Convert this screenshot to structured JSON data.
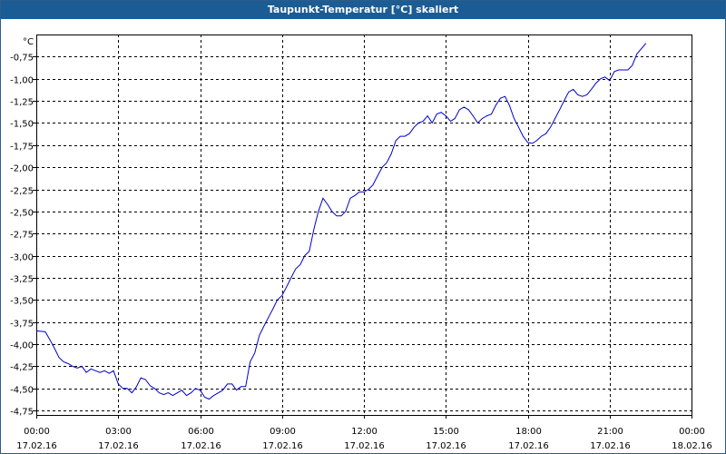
{
  "window": {
    "title": "Taupunkt-Temperatur [°C] skaliert"
  },
  "chart_data": {
    "type": "line",
    "title": "Taupunkt-Temperatur [°C] skaliert",
    "unit_label": "°C",
    "ylim": [
      -4.8,
      -0.5
    ],
    "xlim": [
      0,
      24
    ],
    "grid": true,
    "colors": {
      "line": "#0000cc",
      "grid": "#000000",
      "title_bar": "#1c5c94"
    },
    "y_ticks": [
      {
        "value": -0.75,
        "label": "-0,75"
      },
      {
        "value": -1.0,
        "label": "-1,00"
      },
      {
        "value": -1.25,
        "label": "-1,25"
      },
      {
        "value": -1.5,
        "label": "-1,50"
      },
      {
        "value": -1.75,
        "label": "-1,75"
      },
      {
        "value": -2.0,
        "label": "-2,00"
      },
      {
        "value": -2.25,
        "label": "-2,25"
      },
      {
        "value": -2.5,
        "label": "-2,50"
      },
      {
        "value": -2.75,
        "label": "-2,75"
      },
      {
        "value": -3.0,
        "label": "-3,00"
      },
      {
        "value": -3.25,
        "label": "-3,25"
      },
      {
        "value": -3.5,
        "label": "-3,50"
      },
      {
        "value": -3.75,
        "label": "-3,75"
      },
      {
        "value": -4.0,
        "label": "-4,00"
      },
      {
        "value": -4.25,
        "label": "-4,25"
      },
      {
        "value": -4.5,
        "label": "-4,50"
      },
      {
        "value": -4.75,
        "label": "-4,75"
      }
    ],
    "x_ticks": [
      {
        "value": 0,
        "time": "00:00",
        "date": "17.02.16"
      },
      {
        "value": 3,
        "time": "03:00",
        "date": "17.02.16"
      },
      {
        "value": 6,
        "time": "06:00",
        "date": "17.02.16"
      },
      {
        "value": 9,
        "time": "09:00",
        "date": "17.02.16"
      },
      {
        "value": 12,
        "time": "12:00",
        "date": "17.02.16"
      },
      {
        "value": 15,
        "time": "15:00",
        "date": "17.02.16"
      },
      {
        "value": 18,
        "time": "18:00",
        "date": "17.02.16"
      },
      {
        "value": 21,
        "time": "21:00",
        "date": "17.02.16"
      },
      {
        "value": 24,
        "time": "00:00",
        "date": "18.02.16"
      }
    ],
    "series": [
      {
        "points": [
          [
            0,
            -3.85
          ],
          [
            0.33,
            -3.86
          ],
          [
            0.5,
            -3.95
          ],
          [
            0.67,
            -4.05
          ],
          [
            0.83,
            -4.15
          ],
          [
            1,
            -4.2
          ],
          [
            1.17,
            -4.22
          ],
          [
            1.33,
            -4.25
          ],
          [
            1.5,
            -4.27
          ],
          [
            1.67,
            -4.25
          ],
          [
            1.83,
            -4.32
          ],
          [
            2,
            -4.28
          ],
          [
            2.17,
            -4.3
          ],
          [
            2.33,
            -4.32
          ],
          [
            2.5,
            -4.3
          ],
          [
            2.67,
            -4.33
          ],
          [
            2.83,
            -4.3
          ],
          [
            3,
            -4.45
          ],
          [
            3.17,
            -4.5
          ],
          [
            3.33,
            -4.5
          ],
          [
            3.5,
            -4.55
          ],
          [
            3.67,
            -4.48
          ],
          [
            3.83,
            -4.38
          ],
          [
            4,
            -4.4
          ],
          [
            4.17,
            -4.47
          ],
          [
            4.33,
            -4.5
          ],
          [
            4.5,
            -4.55
          ],
          [
            4.67,
            -4.57
          ],
          [
            4.83,
            -4.55
          ],
          [
            5,
            -4.58
          ],
          [
            5.17,
            -4.55
          ],
          [
            5.33,
            -4.52
          ],
          [
            5.5,
            -4.58
          ],
          [
            5.67,
            -4.55
          ],
          [
            5.83,
            -4.5
          ],
          [
            6,
            -4.52
          ],
          [
            6.17,
            -4.6
          ],
          [
            6.33,
            -4.62
          ],
          [
            6.5,
            -4.58
          ],
          [
            6.67,
            -4.55
          ],
          [
            6.83,
            -4.52
          ],
          [
            7,
            -4.45
          ],
          [
            7.17,
            -4.45
          ],
          [
            7.33,
            -4.52
          ],
          [
            7.5,
            -4.48
          ],
          [
            7.67,
            -4.48
          ],
          [
            7.83,
            -4.2
          ],
          [
            8,
            -4.1
          ],
          [
            8.17,
            -3.9
          ],
          [
            8.33,
            -3.8
          ],
          [
            8.5,
            -3.7
          ],
          [
            8.67,
            -3.6
          ],
          [
            8.83,
            -3.5
          ],
          [
            9,
            -3.45
          ],
          [
            9.17,
            -3.35
          ],
          [
            9.33,
            -3.25
          ],
          [
            9.5,
            -3.15
          ],
          [
            9.67,
            -3.1
          ],
          [
            9.83,
            -3.0
          ],
          [
            10,
            -2.95
          ],
          [
            10.17,
            -2.7
          ],
          [
            10.33,
            -2.5
          ],
          [
            10.5,
            -2.35
          ],
          [
            10.67,
            -2.42
          ],
          [
            10.83,
            -2.5
          ],
          [
            11,
            -2.55
          ],
          [
            11.17,
            -2.55
          ],
          [
            11.33,
            -2.5
          ],
          [
            11.5,
            -2.35
          ],
          [
            11.67,
            -2.32
          ],
          [
            11.83,
            -2.28
          ],
          [
            12,
            -2.28
          ],
          [
            12.17,
            -2.25
          ],
          [
            12.33,
            -2.2
          ],
          [
            12.5,
            -2.1
          ],
          [
            12.67,
            -2.0
          ],
          [
            12.83,
            -1.95
          ],
          [
            13,
            -1.85
          ],
          [
            13.17,
            -1.7
          ],
          [
            13.33,
            -1.65
          ],
          [
            13.5,
            -1.65
          ],
          [
            13.67,
            -1.62
          ],
          [
            13.83,
            -1.55
          ],
          [
            14,
            -1.5
          ],
          [
            14.17,
            -1.48
          ],
          [
            14.33,
            -1.42
          ],
          [
            14.5,
            -1.5
          ],
          [
            14.67,
            -1.4
          ],
          [
            14.83,
            -1.38
          ],
          [
            15,
            -1.42
          ],
          [
            15.17,
            -1.48
          ],
          [
            15.33,
            -1.45
          ],
          [
            15.5,
            -1.35
          ],
          [
            15.67,
            -1.32
          ],
          [
            15.83,
            -1.35
          ],
          [
            16,
            -1.42
          ],
          [
            16.17,
            -1.5
          ],
          [
            16.33,
            -1.45
          ],
          [
            16.5,
            -1.42
          ],
          [
            16.67,
            -1.4
          ],
          [
            16.83,
            -1.3
          ],
          [
            17,
            -1.22
          ],
          [
            17.17,
            -1.2
          ],
          [
            17.33,
            -1.3
          ],
          [
            17.5,
            -1.45
          ],
          [
            17.67,
            -1.55
          ],
          [
            17.83,
            -1.65
          ],
          [
            18,
            -1.72
          ],
          [
            18.17,
            -1.73
          ],
          [
            18.33,
            -1.7
          ],
          [
            18.5,
            -1.65
          ],
          [
            18.67,
            -1.62
          ],
          [
            18.83,
            -1.55
          ],
          [
            19,
            -1.45
          ],
          [
            19.17,
            -1.35
          ],
          [
            19.33,
            -1.25
          ],
          [
            19.5,
            -1.15
          ],
          [
            19.67,
            -1.12
          ],
          [
            19.83,
            -1.18
          ],
          [
            20,
            -1.2
          ],
          [
            20.17,
            -1.18
          ],
          [
            20.33,
            -1.12
          ],
          [
            20.5,
            -1.05
          ],
          [
            20.67,
            -1.0
          ],
          [
            20.83,
            -0.98
          ],
          [
            21,
            -1.02
          ],
          [
            21.17,
            -0.92
          ],
          [
            21.33,
            -0.9
          ],
          [
            21.5,
            -0.9
          ],
          [
            21.67,
            -0.9
          ],
          [
            21.83,
            -0.85
          ],
          [
            22,
            -0.72
          ],
          [
            22.33,
            -0.6
          ]
        ]
      }
    ]
  }
}
